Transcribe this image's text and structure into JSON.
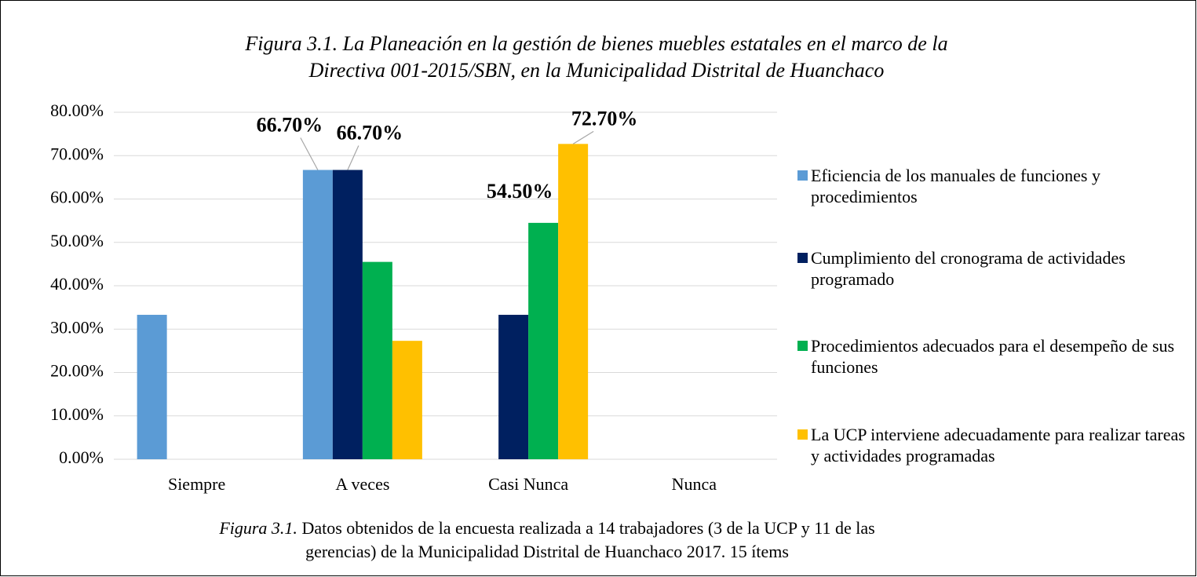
{
  "chart_data": {
    "type": "bar",
    "title": [
      "Figura 3.1. La Planeación en la gestión de bienes muebles estatales en el marco de la",
      "Directiva 001-2015/SBN, en la Municipalidad Distrital de Huanchaco"
    ],
    "caption_label": "Figura 3.1.",
    "caption": [
      "Datos obtenidos de la encuesta realizada a 14 trabajadores (3 de la UCP y 11 de las",
      "gerencias) de la Municipalidad Distrital de Huanchaco 2017. 15 ítems"
    ],
    "categories": [
      "Siempre",
      "A veces",
      "Casi Nunca",
      "Nunca"
    ],
    "series": [
      {
        "name": "Eficiencia de los manuales de funciones y procedimientos",
        "color": "#5b9bd5",
        "values": [
          33.3,
          66.7,
          0,
          0
        ],
        "value_labels": [
          null,
          "66.70%",
          null,
          null
        ]
      },
      {
        "name": "Cumplimiento del cronograma de actividades programado",
        "color": "#002060",
        "values": [
          0,
          66.7,
          33.3,
          0
        ],
        "value_labels": [
          null,
          "66.70%",
          null,
          null
        ]
      },
      {
        "name": "Procedimientos adecuados para el desempeño de sus funciones",
        "color": "#00b050",
        "values": [
          0,
          45.5,
          54.5,
          0
        ],
        "value_labels": [
          null,
          null,
          "54.50%",
          null
        ]
      },
      {
        "name": "La UCP interviene adecuadamente para realizar tareas y actividades programadas",
        "color": "#ffc000",
        "values": [
          0,
          27.3,
          72.7,
          0
        ],
        "value_labels": [
          null,
          null,
          "72.70%",
          null
        ]
      }
    ],
    "ylim": [
      0,
      80
    ],
    "yticks": [
      {
        "value": 0,
        "label": "0.00%"
      },
      {
        "value": 10,
        "label": "10.00%"
      },
      {
        "value": 20,
        "label": "20.00%"
      },
      {
        "value": 30,
        "label": "30.00%"
      },
      {
        "value": 40,
        "label": "40.00%"
      },
      {
        "value": 50,
        "label": "50.00%"
      },
      {
        "value": 60,
        "label": "60.00%"
      },
      {
        "value": 70,
        "label": "70.00%"
      },
      {
        "value": 80,
        "label": "80.00%"
      }
    ],
    "grid": true,
    "legend": "right"
  }
}
